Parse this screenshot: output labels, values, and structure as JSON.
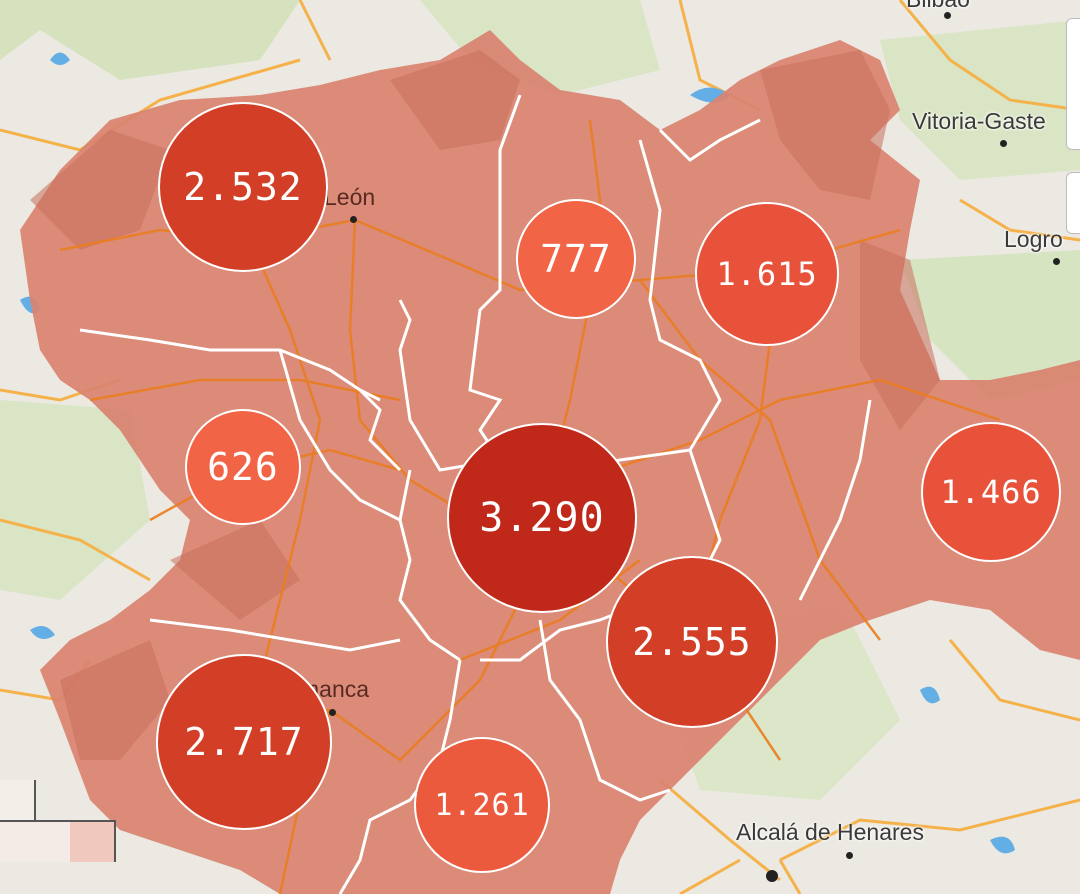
{
  "map": {
    "colors": {
      "region_fill": "#d9826f",
      "region_border": "#ffffff",
      "road": "#f39a2a",
      "water": "#5aa9e6",
      "land": "#eceae3",
      "green": "#cfe0b4"
    },
    "places": {
      "leon": "León",
      "salamanca": "manca",
      "vitoria": "Vitoria-Gaste",
      "logrono": "Logro",
      "bilbao": "Bilbao",
      "alcala": "Alcalá de Henares"
    },
    "bubbles": [
      {
        "id": "leon",
        "value": "2.532",
        "count": 2532,
        "color": "#d23f26"
      },
      {
        "id": "palencia",
        "value": "777",
        "count": 777,
        "color": "#f26446"
      },
      {
        "id": "burgos",
        "value": "1.615",
        "count": 1615,
        "color": "#e8523a"
      },
      {
        "id": "zamora",
        "value": "626",
        "count": 626,
        "color": "#f26446"
      },
      {
        "id": "valladolid",
        "value": "3.290",
        "count": 3290,
        "color": "#c0281a"
      },
      {
        "id": "soria",
        "value": "1.466",
        "count": 1466,
        "color": "#e8523a"
      },
      {
        "id": "segovia",
        "value": "2.555",
        "count": 2555,
        "color": "#d23f26"
      },
      {
        "id": "salamanca",
        "value": "2.717",
        "count": 2717,
        "color": "#d23f26"
      },
      {
        "id": "avila",
        "value": "1.261",
        "count": 1261,
        "color": "#ec5a3e"
      }
    ]
  }
}
